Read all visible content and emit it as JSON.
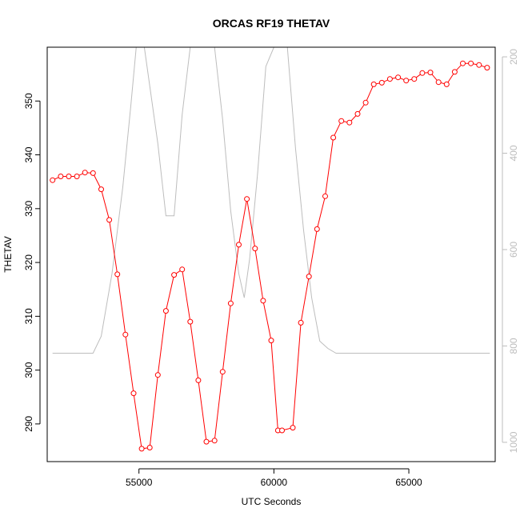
{
  "chart_data": {
    "type": "line",
    "title": "ORCAS RF19 THETAV",
    "xlabel": "UTC Seconds",
    "ylabel": "THETAV",
    "xlim": [
      51600,
      68200
    ],
    "ylim": [
      283,
      360
    ],
    "y2lim": [
      1040,
      180
    ],
    "x_ticks": [
      55000,
      60000,
      65000
    ],
    "y_ticks": [
      290,
      300,
      310,
      320,
      330,
      340,
      350
    ],
    "y2_ticks": [
      200,
      400,
      600,
      800,
      1000
    ],
    "grid": false,
    "series": [
      {
        "color": "#ff0000",
        "marker": "open-circle",
        "axis": "left",
        "x": [
          51800,
          52100,
          52400,
          52700,
          53000,
          53300,
          53600,
          53900,
          54200,
          54500,
          54800,
          55100,
          55400,
          55700,
          56000,
          56300,
          56600,
          56900,
          57200,
          57500,
          57800,
          58100,
          58400,
          58700,
          59000,
          59300,
          59600,
          59900,
          60150,
          60300,
          60700,
          61000,
          61300,
          61600,
          61900,
          62200,
          62500,
          62800,
          63100,
          63400,
          63700,
          64000,
          64300,
          64600,
          64900,
          65200,
          65500,
          65800,
          66100,
          66400,
          66700,
          67000,
          67300,
          67600,
          67900
        ],
        "y": [
          335.3,
          336.0,
          336.0,
          336.0,
          336.7,
          336.6,
          333.6,
          327.9,
          317.8,
          306.6,
          295.7,
          285.4,
          285.6,
          299.1,
          311.0,
          317.7,
          318.7,
          309.0,
          298.1,
          286.7,
          286.9,
          299.7,
          312.4,
          323.3,
          331.8,
          322.6,
          312.9,
          305.5,
          288.8,
          288.8,
          289.3,
          308.8,
          317.4,
          326.2,
          332.3,
          343.2,
          346.3,
          346.0,
          347.6,
          349.7,
          353.1,
          353.4,
          354.1,
          354.4,
          353.8,
          354.1,
          355.2,
          355.3,
          353.5,
          353.1,
          355.4,
          357.0,
          357.0,
          356.7,
          356.2
        ]
      },
      {
        "color": "#bdbdbd",
        "marker": "none",
        "axis": "right",
        "x": [
          51800,
          53300,
          53600,
          54000,
          54400,
          54700,
          54900,
          55200,
          55700,
          56000,
          56300,
          56600,
          56900,
          57200,
          57500,
          57800,
          58100,
          58400,
          58700,
          58900,
          59100,
          59400,
          59700,
          60000,
          60300,
          60500,
          60800,
          61100,
          61400,
          61700,
          62000,
          62300,
          63000,
          68000
        ],
        "y": [
          815,
          815,
          780,
          650,
          470,
          300,
          120,
          120,
          380,
          530,
          530,
          320,
          120,
          120,
          120,
          120,
          330,
          520,
          650,
          700,
          620,
          440,
          220,
          120,
          120,
          120,
          390,
          560,
          700,
          790,
          805,
          815,
          815,
          815
        ]
      }
    ]
  }
}
